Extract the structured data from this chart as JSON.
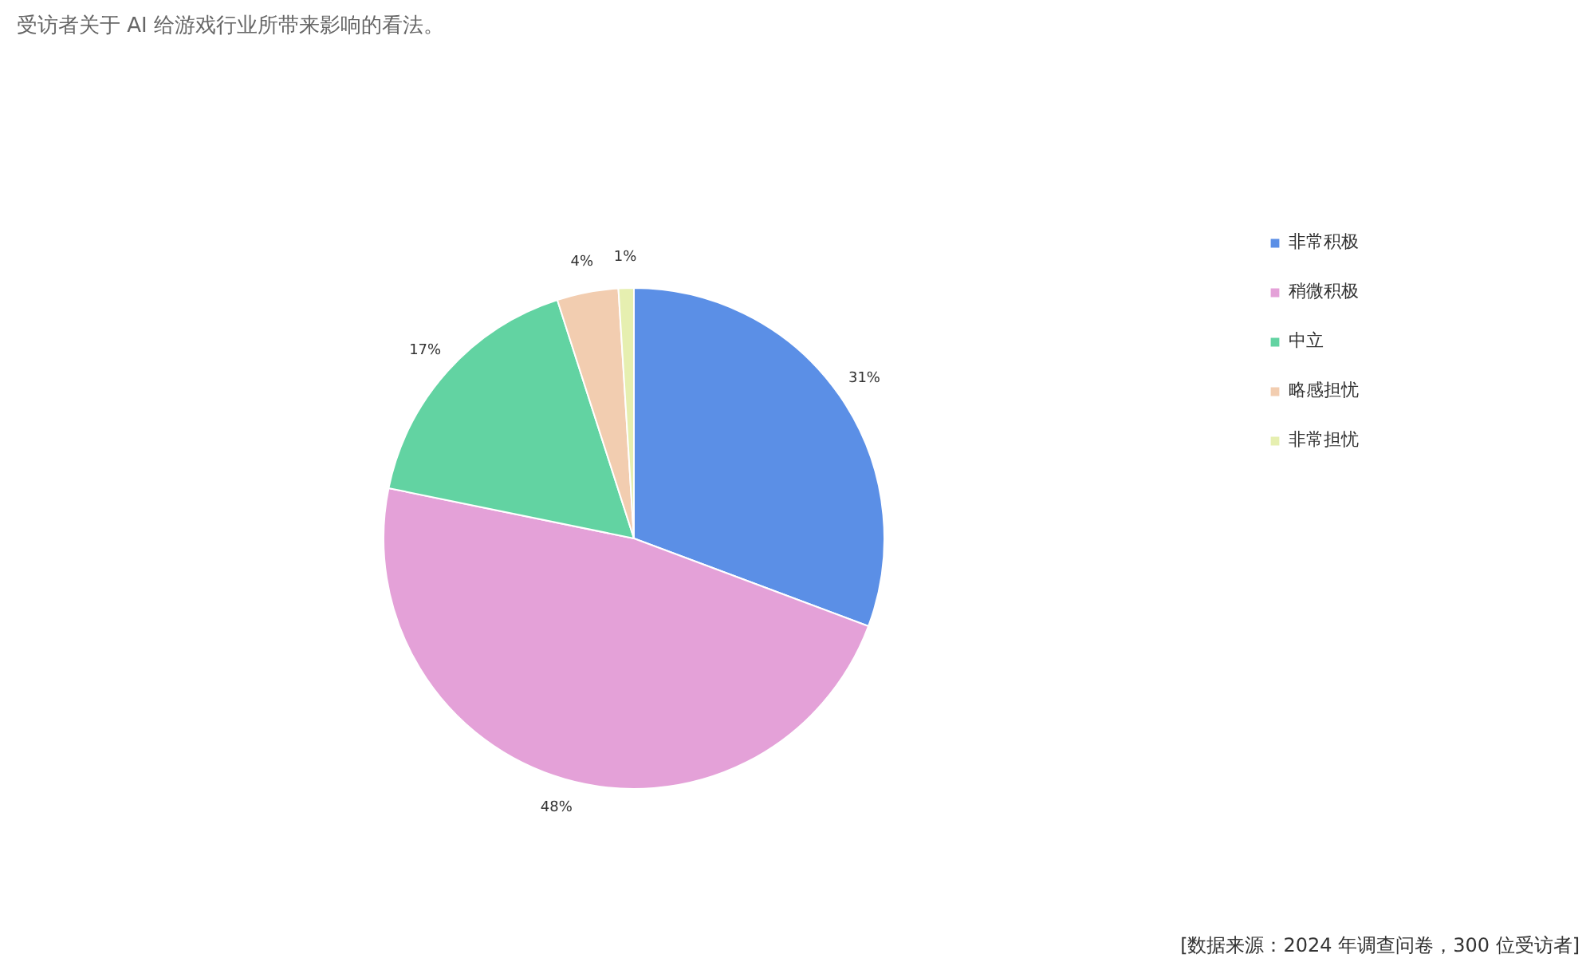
{
  "chart_data": {
    "type": "pie",
    "title": "受访者关于 AI 给游戏行业所带来影响的看法。",
    "categories": [
      "非常积极",
      "稍微积极",
      "中立",
      "略感担忧",
      "非常担忧"
    ],
    "values": [
      31,
      48,
      17,
      4,
      1
    ],
    "value_labels": [
      "31%",
      "48%",
      "17%",
      "4%",
      "1%"
    ],
    "colors": [
      "#5b8fe6",
      "#e4a1d8",
      "#62d3a2",
      "#f2cdb0",
      "#e6efb0"
    ],
    "legend": "right",
    "annotations": [
      "[数据来源：2024 年调查问卷，300 位受访者]"
    ]
  }
}
